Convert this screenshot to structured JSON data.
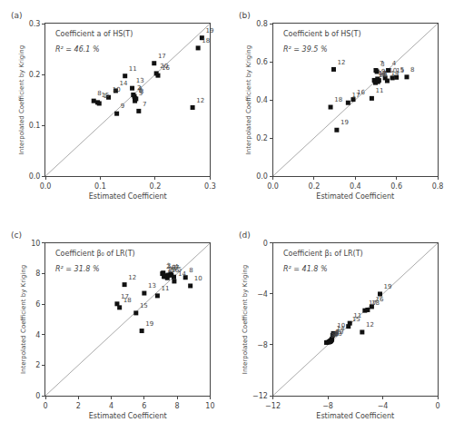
{
  "chart_data": [
    {
      "type": "scatter",
      "title": "(a)",
      "subtitle": "Coefficient a of HS(T)",
      "annotations": [
        "R² = 46.1 %"
      ],
      "xlabel": "Estimated Coefficient",
      "ylabel": "Interpolated Coefficient by Kriging",
      "xlim": [
        0,
        0.3
      ],
      "ylim": [
        0,
        0.3
      ],
      "xticks": [
        {
          "value": 0,
          "label": "0.0"
        },
        0.1,
        0.2,
        0.3
      ],
      "yticks": [
        {
          "value": 0,
          "label": "0.0"
        },
        0.1,
        0.2,
        0.3
      ],
      "grid": false,
      "series": [
        {
          "type": "line",
          "color": "#aaaaaa",
          "x": [
            0,
            0.3
          ],
          "values": [
            0,
            0.3
          ]
        },
        {
          "type": "scatter",
          "marker": "square",
          "color": "#111111",
          "labels": [
            "8",
            "15",
            "1",
            "10",
            "14",
            "9",
            "11",
            "13",
            "2",
            "4",
            "6",
            "7",
            "3",
            "5",
            "17",
            "20",
            "16",
            "12",
            "18",
            "19"
          ],
          "x": [
            0.088,
            0.095,
            0.098,
            0.115,
            0.128,
            0.13,
            0.145,
            0.158,
            0.16,
            0.162,
            0.163,
            0.17,
            0.165,
            0.163,
            0.198,
            0.202,
            0.205,
            0.268,
            0.278,
            0.285
          ],
          "values": [
            0.148,
            0.145,
            0.143,
            0.155,
            0.168,
            0.123,
            0.197,
            0.173,
            0.16,
            0.157,
            0.153,
            0.128,
            0.152,
            0.148,
            0.222,
            0.202,
            0.198,
            0.135,
            0.252,
            0.272
          ]
        }
      ]
    },
    {
      "type": "scatter",
      "title": "(b)",
      "subtitle": "Coefficient b of HS(T)",
      "annotations": [
        "R² = 39.5 %"
      ],
      "xlabel": "Estimated Coefficient",
      "ylabel": "Interpolated Coefficient by Kriging",
      "xlim": [
        0,
        0.8
      ],
      "ylim": [
        0,
        0.8
      ],
      "xticks": [
        {
          "value": 0,
          "label": "0.0"
        },
        0.2,
        0.4,
        0.6,
        0.8
      ],
      "yticks": [
        {
          "value": 0,
          "label": "0.0"
        },
        0.2,
        0.4,
        0.6,
        0.8
      ],
      "grid": false,
      "series": [
        {
          "type": "line",
          "color": "#aaaaaa",
          "x": [
            0,
            0.8
          ],
          "values": [
            0,
            0.8
          ]
        },
        {
          "type": "scatter",
          "marker": "square",
          "color": "#111111",
          "labels": [
            "18",
            "12",
            "19",
            "17",
            "16",
            "11",
            "1",
            "13",
            "20",
            "7",
            "3",
            "9",
            "6",
            "2",
            "10",
            "14",
            "4",
            "15",
            "5",
            "8"
          ],
          "x": [
            0.28,
            0.295,
            0.31,
            0.365,
            0.39,
            0.48,
            0.492,
            0.495,
            0.498,
            0.5,
            0.505,
            0.508,
            0.51,
            0.515,
            0.545,
            0.555,
            0.56,
            0.58,
            0.6,
            0.65
          ],
          "values": [
            0.362,
            0.56,
            0.242,
            0.385,
            0.402,
            0.408,
            0.503,
            0.5,
            0.49,
            0.555,
            0.548,
            0.51,
            0.495,
            0.502,
            0.515,
            0.5,
            0.555,
            0.515,
            0.518,
            0.52
          ]
        }
      ]
    },
    {
      "type": "scatter",
      "title": "(c)",
      "subtitle": "Coefficient β₀ of LR(T)",
      "annotations": [
        "R² = 31.8 %"
      ],
      "xlabel": "Estimated Coefficient",
      "ylabel": "Interpolated Coefficient by Kriging",
      "xlim": [
        0,
        10
      ],
      "ylim": [
        0,
        10
      ],
      "xticks": [
        0,
        2,
        4,
        6,
        8,
        10
      ],
      "yticks": [
        0,
        2,
        4,
        6,
        8,
        10
      ],
      "grid": false,
      "series": [
        {
          "type": "line",
          "color": "#aaaaaa",
          "x": [
            0,
            10
          ],
          "values": [
            0,
            10
          ]
        },
        {
          "type": "scatter",
          "marker": "square",
          "color": "#111111",
          "labels": [
            "17",
            "18",
            "12",
            "15",
            "19",
            "13",
            "11",
            "2",
            "3",
            "20",
            "9",
            "16",
            "6",
            "1",
            "4",
            "7",
            "5",
            "14",
            "8",
            "10"
          ],
          "x": [
            4.35,
            4.5,
            4.8,
            5.5,
            5.85,
            6.0,
            6.8,
            7.1,
            7.15,
            7.2,
            7.22,
            7.4,
            7.42,
            7.5,
            7.6,
            7.65,
            7.8,
            7.82,
            8.5,
            8.8
          ],
          "values": [
            6.02,
            5.78,
            7.28,
            5.42,
            4.25,
            6.72,
            6.55,
            8.0,
            8.05,
            7.82,
            7.8,
            7.72,
            7.9,
            7.9,
            7.98,
            7.9,
            7.78,
            7.5,
            7.75,
            7.2
          ]
        }
      ]
    },
    {
      "type": "scatter",
      "title": "(d)",
      "subtitle": "Coefficient β₁ of LR(T)",
      "annotations": [
        "R² = 41.8 %"
      ],
      "xlabel": "Estimated Coefficient",
      "ylabel": "Interpolated Coefficient by Kriging",
      "xlim": [
        -12,
        0
      ],
      "ylim": [
        -12,
        0
      ],
      "xticks": [
        {
          "value": -12,
          "label": "−12"
        },
        {
          "value": -8,
          "label": "−8"
        },
        {
          "value": -4,
          "label": "−4"
        },
        0
      ],
      "yticks": [
        {
          "value": -12,
          "label": "−12"
        },
        {
          "value": -8,
          "label": "−8"
        },
        {
          "value": -4,
          "label": "−4"
        },
        0
      ],
      "grid": false,
      "series": [
        {
          "type": "line",
          "color": "#aaaaaa",
          "x": [
            -12,
            0
          ],
          "values": [
            -12,
            0
          ]
        },
        {
          "type": "scatter",
          "marker": "square",
          "color": "#111111",
          "labels": [
            "19",
            "16",
            "18",
            "17",
            "12",
            "11",
            "15",
            "10",
            "14",
            "1",
            "20",
            "9",
            "3",
            "6",
            "13",
            "2",
            "4",
            "7",
            "5",
            "8"
          ],
          "x": [
            -4.2,
            -4.8,
            -5.1,
            -5.3,
            -5.5,
            -6.4,
            -6.5,
            -7.6,
            -7.65,
            -7.7,
            -7.72,
            -7.75,
            -7.78,
            -7.8,
            -7.82,
            -7.85,
            -7.88,
            -7.9,
            -8.0,
            -8.1
          ],
          "values": [
            -4.0,
            -5.0,
            -5.25,
            -5.3,
            -7.0,
            -6.3,
            -6.55,
            -7.1,
            -7.25,
            -7.55,
            -7.6,
            -7.65,
            -7.68,
            -7.7,
            -7.72,
            -7.75,
            -7.75,
            -7.78,
            -7.8,
            -7.82
          ]
        }
      ]
    }
  ]
}
